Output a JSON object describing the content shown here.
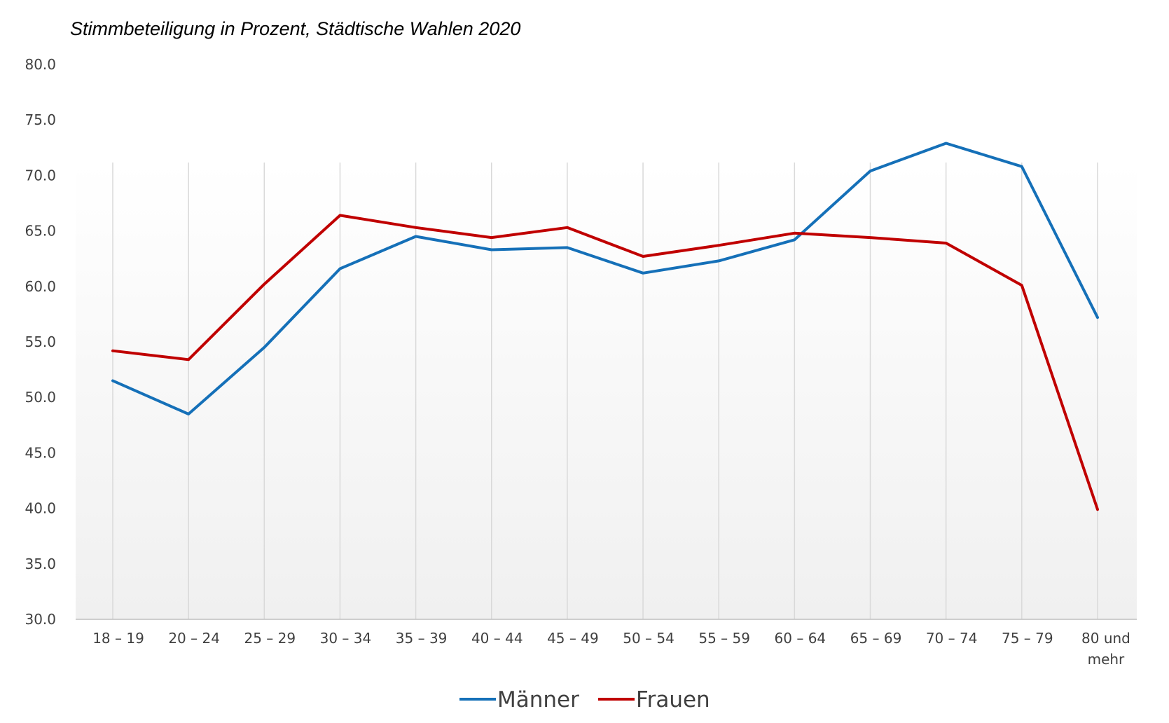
{
  "chart_data": {
    "type": "line",
    "title": "Stimmbeteiligung in Prozent, Städtische Wahlen 2020",
    "xlabel": "",
    "ylabel": "",
    "ylim": [
      30,
      80
    ],
    "yticks": [
      "30.0",
      "35.0",
      "40.0",
      "45.0",
      "50.0",
      "55.0",
      "60.0",
      "65.0",
      "70.0",
      "75.0",
      "80.0"
    ],
    "categories": [
      [
        "18 – 19"
      ],
      [
        "20 – 24"
      ],
      [
        "25 – 29"
      ],
      [
        "30 – 34"
      ],
      [
        "35 – 39"
      ],
      [
        "40 – 44"
      ],
      [
        "45 – 49"
      ],
      [
        "50 – 54"
      ],
      [
        "55 – 59"
      ],
      [
        "60 – 64"
      ],
      [
        "65 – 69"
      ],
      [
        "70 – 74"
      ],
      [
        "75 – 79"
      ],
      [
        "80 und",
        "mehr"
      ]
    ],
    "series": [
      {
        "name": "Männer",
        "color": "#1570b8",
        "values": [
          51.5,
          48.5,
          54.5,
          61.6,
          64.5,
          63.3,
          63.5,
          61.2,
          62.3,
          64.2,
          70.4,
          72.9,
          70.8,
          57.2
        ]
      },
      {
        "name": "Frauen",
        "color": "#c00000",
        "values": [
          54.2,
          53.4,
          60.2,
          66.4,
          65.3,
          64.4,
          65.3,
          62.7,
          63.7,
          64.8,
          64.4,
          63.9,
          60.1,
          39.9
        ]
      }
    ],
    "grid": "vertical",
    "legend": "bottom-center"
  }
}
